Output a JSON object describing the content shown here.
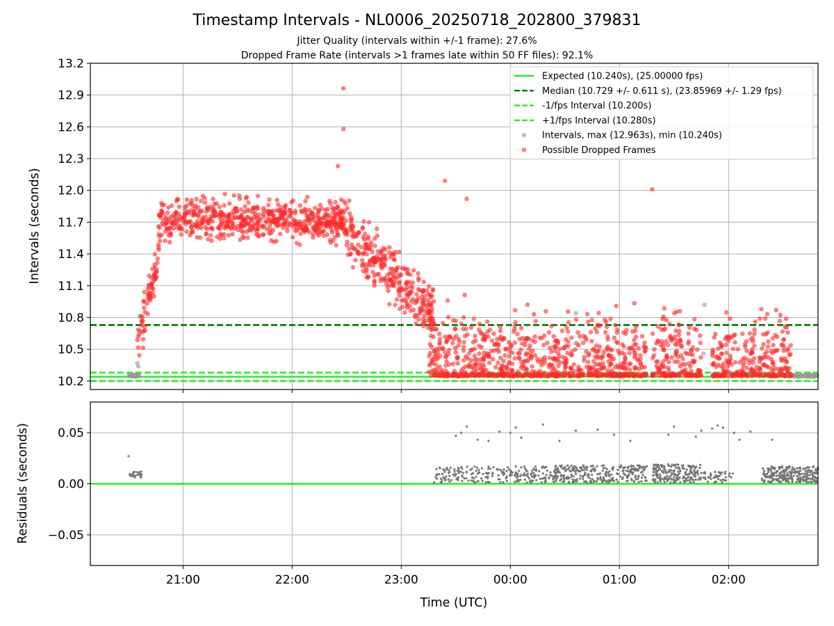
{
  "chart_data": [
    {
      "type": "scatter",
      "panel": "intervals",
      "title": "Timestamp Intervals - NL0006_20250718_202800_379831",
      "subtitle_1": "Jitter Quality (intervals within +/-1 frame): 27.6%",
      "subtitle_2": "Dropped Frame Rate (intervals >1 frames late within 50 FF files): 92.1%",
      "ylabel": "Intervals (seconds)",
      "ylim": [
        10.12,
        13.2
      ],
      "yticks": [
        "10.2",
        "10.5",
        "10.8",
        "11.1",
        "11.4",
        "11.7",
        "12.0",
        "12.3",
        "12.6",
        "12.9",
        "13.2"
      ],
      "xlim_hours": [
        20.15,
        26.82
      ],
      "grid": true,
      "legend_position": "top-right",
      "reference_lines": [
        {
          "name": "Expected (10.240s), (25.00000 fps)",
          "y": 10.24,
          "style": "solid",
          "color": "#22ee22"
        },
        {
          "name": "Median (10.729 +/- 0.611 s), (23.85969 +/- 1.29 fps)",
          "y": 10.729,
          "style": "dashed",
          "color": "#007700"
        },
        {
          "name": "-1/fps Interval (10.200s)",
          "y": 10.2,
          "style": "dashed",
          "color": "#22ee22"
        },
        {
          "name": "+1/fps Interval (10.280s)",
          "y": 10.28,
          "style": "dashed",
          "color": "#22ee22"
        }
      ],
      "series": [
        {
          "name": "Intervals, max (12.963s), min (10.240s)",
          "color": "#999999",
          "marker": "circle"
        },
        {
          "name": "Possible Dropped Frames",
          "color": "#ff2a2a",
          "marker": "circle"
        }
      ],
      "data_description_regions": [
        {
          "x": [
            20.5,
            20.6
          ],
          "y": [
            10.24,
            10.26
          ],
          "series": "intervals",
          "density": "dense"
        },
        {
          "x": [
            20.55,
            20.7
          ],
          "y": [
            10.35,
            11.3
          ],
          "series": "dropped",
          "trend": "rising"
        },
        {
          "x": [
            20.7,
            22.5
          ],
          "y": [
            11.1,
            12.4
          ],
          "series": "dropped",
          "center": 11.7
        },
        {
          "x": [
            22.5,
            23.3
          ],
          "y": [
            10.4,
            12.0
          ],
          "series": "dropped",
          "trend": "falling"
        },
        {
          "x": [
            23.2,
            26.6
          ],
          "y": [
            10.24,
            11.5
          ],
          "series": "dropped",
          "bursty": true
        },
        {
          "x": [
            26.55,
            26.82
          ],
          "y": [
            10.24,
            10.26
          ],
          "series": "intervals",
          "density": "dense"
        }
      ],
      "outliers": [
        [
          22.47,
          12.963
        ],
        [
          22.47,
          12.58
        ],
        [
          22.42,
          12.23
        ],
        [
          23.4,
          12.09
        ],
        [
          25.3,
          12.01
        ],
        [
          23.6,
          11.92
        ]
      ]
    },
    {
      "type": "scatter",
      "panel": "residuals",
      "xlabel": "Time (UTC)",
      "ylabel": "Residuals (seconds)",
      "ylim": [
        -0.08,
        0.08
      ],
      "yticks": [
        "−0.05",
        "0.00",
        "0.05"
      ],
      "xticks": [
        "21:00",
        "22:00",
        "23:00",
        "00:00",
        "01:00",
        "02:00"
      ],
      "xtick_hours": [
        21,
        22,
        23,
        24,
        25,
        26
      ],
      "grid": true,
      "zero_line_color": "#22ee22",
      "point_color": "#777777",
      "clusters": [
        {
          "x": [
            20.5,
            20.62
          ],
          "y": [
            0.006,
            0.012
          ],
          "n": 25,
          "extra": [
            [
              20.5,
              0.027
            ]
          ]
        },
        {
          "x": [
            23.3,
            24.4
          ],
          "y": [
            0.001,
            0.017
          ],
          "n": 220
        },
        {
          "x": [
            24.4,
            25.25
          ],
          "y": [
            0.001,
            0.018
          ],
          "n": 280
        },
        {
          "x": [
            25.3,
            25.75
          ],
          "y": [
            0.001,
            0.019
          ],
          "n": 200
        },
        {
          "x": [
            25.75,
            26.05
          ],
          "y": [
            0.001,
            0.012
          ],
          "n": 40
        },
        {
          "x": [
            26.3,
            26.82
          ],
          "y": [
            0.001,
            0.017
          ],
          "n": 260
        }
      ],
      "high_points": [
        [
          23.5,
          0.047
        ],
        [
          23.55,
          0.05
        ],
        [
          23.6,
          0.056
        ],
        [
          23.7,
          0.043
        ],
        [
          23.8,
          0.042
        ],
        [
          23.9,
          0.051
        ],
        [
          24.0,
          0.05
        ],
        [
          24.05,
          0.055
        ],
        [
          24.1,
          0.045
        ],
        [
          24.3,
          0.058
        ],
        [
          24.45,
          0.042
        ],
        [
          24.6,
          0.052
        ],
        [
          24.8,
          0.053
        ],
        [
          24.95,
          0.048
        ],
        [
          25.1,
          0.042
        ],
        [
          25.45,
          0.048
        ],
        [
          25.5,
          0.056
        ],
        [
          25.7,
          0.046
        ],
        [
          25.75,
          0.052
        ],
        [
          25.85,
          0.054
        ],
        [
          25.9,
          0.057
        ],
        [
          25.95,
          0.055
        ],
        [
          26.05,
          0.05
        ],
        [
          26.1,
          0.043
        ],
        [
          26.2,
          0.051
        ],
        [
          26.4,
          0.043
        ]
      ]
    }
  ]
}
